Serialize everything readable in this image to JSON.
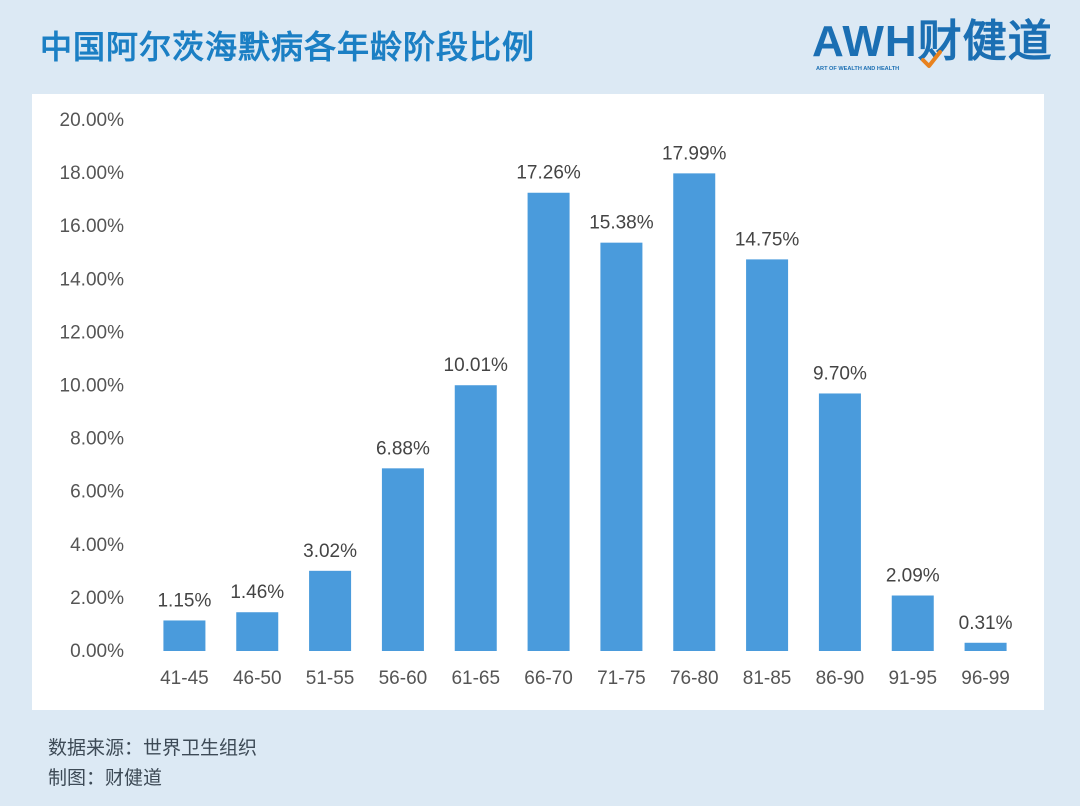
{
  "header": {
    "title": "中国阿尔茨海默病各年龄阶段比例"
  },
  "logo": {
    "text": "AWH财健道",
    "tagline": "ART OF WEALTH AND HEALTH"
  },
  "footer": {
    "source": "数据来源：世界卫生组织",
    "credit": "制图：财健道"
  },
  "colors": {
    "bar": "#4a9bdc",
    "title": "#1b7fc4",
    "background": "#dce9f4"
  },
  "chart_data": {
    "type": "bar",
    "title": "中国阿尔茨海默病各年龄阶段比例",
    "xlabel": "",
    "ylabel": "",
    "categories": [
      "41-45",
      "46-50",
      "51-55",
      "56-60",
      "61-65",
      "66-70",
      "71-75",
      "76-80",
      "81-85",
      "86-90",
      "91-95",
      "96-99"
    ],
    "values": [
      1.15,
      1.46,
      3.02,
      6.88,
      10.01,
      17.26,
      15.38,
      17.99,
      14.75,
      9.7,
      2.09,
      0.31
    ],
    "value_labels": [
      "1.15%",
      "1.46%",
      "3.02%",
      "6.88%",
      "10.01%",
      "17.26%",
      "15.38%",
      "17.99%",
      "14.75%",
      "9.70%",
      "2.09%",
      "0.31%"
    ],
    "ylim": [
      0,
      20
    ],
    "yticks": [
      0,
      2,
      4,
      6,
      8,
      10,
      12,
      14,
      16,
      18,
      20
    ],
    "ytick_labels": [
      "0.00%",
      "2.00%",
      "4.00%",
      "6.00%",
      "8.00%",
      "10.00%",
      "12.00%",
      "14.00%",
      "16.00%",
      "18.00%",
      "20.00%"
    ],
    "grid": false,
    "legend": "none"
  }
}
